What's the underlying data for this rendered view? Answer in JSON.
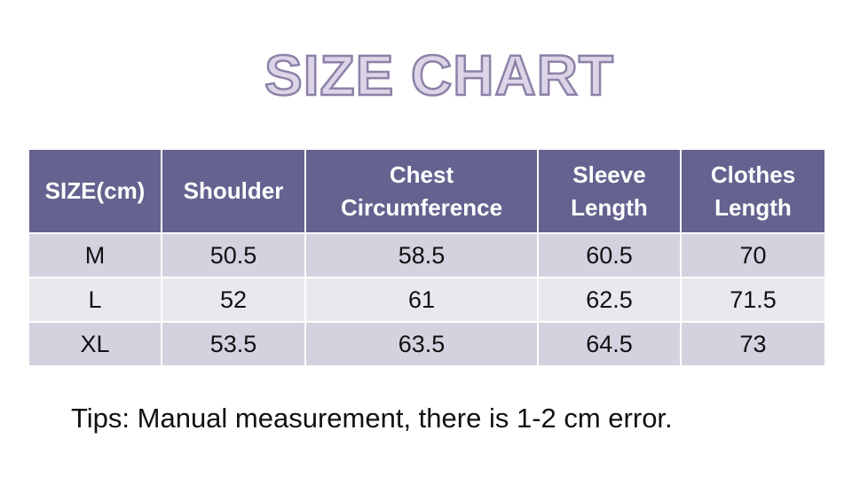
{
  "header": {
    "title": "SIZE CHART"
  },
  "table": {
    "columns": [
      "SIZE(cm)",
      "Shoulder",
      "Chest Circumference",
      "Sleeve Length",
      "Clothes Length"
    ],
    "rows": [
      [
        "M",
        "50.5",
        "58.5",
        "60.5",
        "70"
      ],
      [
        "L",
        "52",
        "61",
        "62.5",
        "71.5"
      ],
      [
        "XL",
        "53.5",
        "63.5",
        "64.5",
        "73"
      ]
    ]
  },
  "footer": {
    "tips": "Tips: Manual measurement, there is 1-2 cm error."
  }
}
